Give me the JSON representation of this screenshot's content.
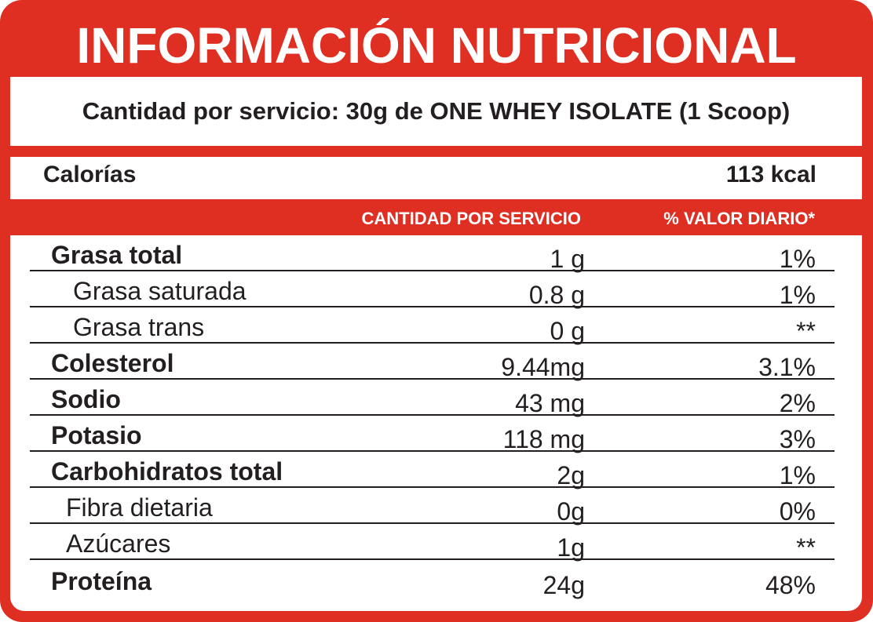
{
  "title": "INFORMACIÓN NUTRICIONAL",
  "serving": "Cantidad por servicio: 30g de ONE WHEY ISOLATE (1 Scoop)",
  "calories": {
    "label": "Calorías",
    "value": "113 kcal"
  },
  "headers": {
    "amount": "CANTIDAD POR SERVICIO",
    "daily_value": "% VALOR DIARIO*"
  },
  "colors": {
    "brand_red": "#de2f22",
    "text": "#231f20",
    "background": "#ffffff"
  },
  "rows": [
    {
      "name": "Grasa total",
      "amount": "1 g",
      "dv": "1%"
    },
    {
      "name": "Grasa saturada",
      "amount": "0.8 g",
      "dv": "1%"
    },
    {
      "name": "Grasa trans",
      "amount": "0 g",
      "dv": "**"
    },
    {
      "name": "Colesterol",
      "amount": "9.44mg",
      "dv": "3.1%"
    },
    {
      "name": "Sodio",
      "amount": "43 mg",
      "dv": "2%"
    },
    {
      "name": "Potasio",
      "amount": "118 mg",
      "dv": "3%"
    },
    {
      "name": "Carbohidratos total",
      "amount": "2g",
      "dv": "1%"
    },
    {
      "name": "Fibra dietaria",
      "amount": "0g",
      "dv": "0%"
    },
    {
      "name": "Azúcares",
      "amount": "1g",
      "dv": "**"
    },
    {
      "name": "Proteína",
      "amount": "24g",
      "dv": "48%"
    }
  ]
}
